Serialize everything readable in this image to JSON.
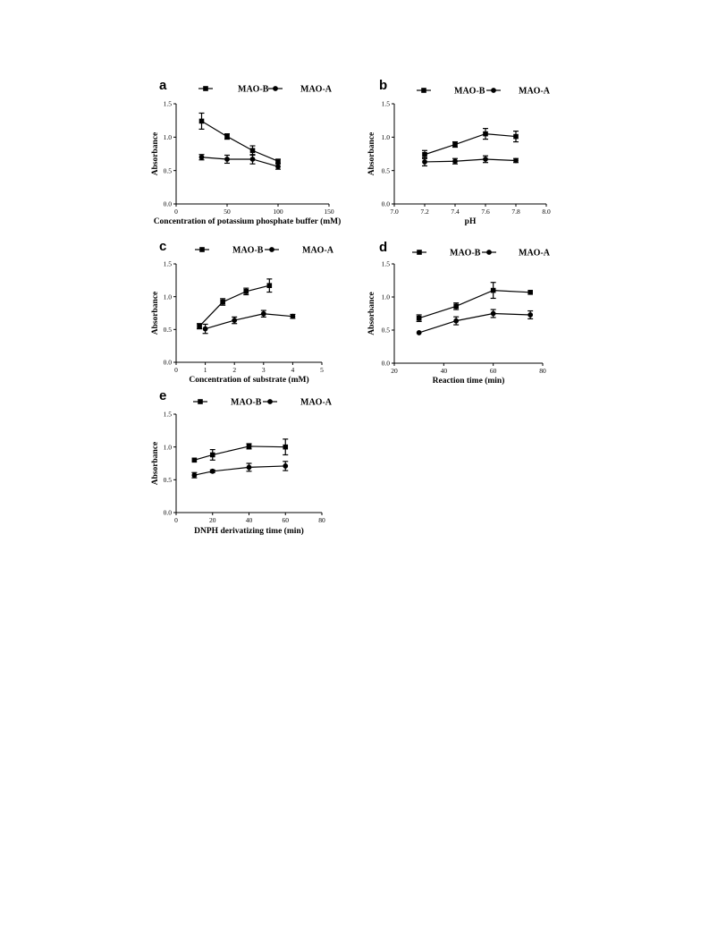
{
  "chart_data": [
    {
      "panel": "a",
      "type": "line",
      "xlabel": "Concentration of potassium phosphate buffer (mM)",
      "ylabel": "Absorbance",
      "xlim": [
        0,
        150
      ],
      "ylim": [
        0,
        1.5
      ],
      "xticks": [
        0,
        50,
        100,
        150
      ],
      "yticks": [
        0.0,
        0.5,
        1.0,
        1.5
      ],
      "xtick_labels": [
        "0",
        "50",
        "100",
        "150"
      ],
      "ytick_labels": [
        "0.0",
        "0.5",
        "1.0",
        "1.5"
      ],
      "legend": "top",
      "series": [
        {
          "name": "MAO-B",
          "marker": "square",
          "x": [
            25,
            50,
            75,
            100
          ],
          "y": [
            1.24,
            1.01,
            0.8,
            0.64
          ],
          "err": [
            0.12,
            0.04,
            0.07,
            0.03
          ]
        },
        {
          "name": "MAO-A",
          "marker": "circle",
          "x": [
            25,
            50,
            75,
            100
          ],
          "y": [
            0.7,
            0.67,
            0.67,
            0.56
          ],
          "err": [
            0.04,
            0.06,
            0.07,
            0.04
          ]
        }
      ]
    },
    {
      "panel": "b",
      "type": "line",
      "xlabel": "pH",
      "ylabel": "Absorbance",
      "xlim": [
        7.0,
        8.0
      ],
      "ylim": [
        0,
        1.5
      ],
      "xticks": [
        7.0,
        7.2,
        7.4,
        7.6,
        7.8,
        8.0
      ],
      "yticks": [
        0.0,
        0.5,
        1.0,
        1.5
      ],
      "xtick_labels": [
        "7.0",
        "7.2",
        "7.4",
        "7.6",
        "7.8",
        "8.0"
      ],
      "ytick_labels": [
        "0.0",
        "0.5",
        "1.0",
        "1.5"
      ],
      "legend": "top",
      "series": [
        {
          "name": "MAO-B",
          "marker": "square",
          "x": [
            7.2,
            7.4,
            7.6,
            7.8
          ],
          "y": [
            0.74,
            0.89,
            1.05,
            1.01
          ],
          "err": [
            0.06,
            0.04,
            0.08,
            0.08
          ]
        },
        {
          "name": "MAO-A",
          "marker": "circle",
          "x": [
            7.2,
            7.4,
            7.6,
            7.8
          ],
          "y": [
            0.63,
            0.64,
            0.67,
            0.65
          ],
          "err": [
            0.06,
            0.04,
            0.05,
            0.03
          ]
        }
      ]
    },
    {
      "panel": "c",
      "type": "line",
      "xlabel": "Concentration of substrate (mM)",
      "ylabel": "Absorbance",
      "xlim": [
        0,
        5
      ],
      "ylim": [
        0,
        1.5
      ],
      "xticks": [
        0,
        1,
        2,
        3,
        4,
        5
      ],
      "yticks": [
        0.0,
        0.5,
        1.0,
        1.5
      ],
      "xtick_labels": [
        "0",
        "1",
        "2",
        "3",
        "4",
        "5"
      ],
      "ytick_labels": [
        "0.0",
        "0.5",
        "1.0",
        "1.5"
      ],
      "legend": "top",
      "series": [
        {
          "name": "MAO-B",
          "marker": "square",
          "x": [
            0.8,
            1.6,
            2.4,
            3.2
          ],
          "y": [
            0.55,
            0.92,
            1.08,
            1.17
          ],
          "err": [
            0.04,
            0.05,
            0.05,
            0.1
          ]
        },
        {
          "name": "MAO-A",
          "marker": "circle",
          "x": [
            1.0,
            2.0,
            3.0,
            4.0
          ],
          "y": [
            0.51,
            0.64,
            0.74,
            0.7
          ],
          "err": [
            0.07,
            0.05,
            0.05,
            0.03
          ]
        }
      ]
    },
    {
      "panel": "d",
      "type": "line",
      "xlabel": "Reaction time (min)",
      "ylabel": "Absorbance",
      "xlim": [
        20,
        80
      ],
      "ylim": [
        0,
        1.5
      ],
      "xticks": [
        20,
        40,
        60,
        80
      ],
      "yticks": [
        0.0,
        0.5,
        1.0,
        1.5
      ],
      "xtick_labels": [
        "20",
        "40",
        "60",
        "80"
      ],
      "ytick_labels": [
        "0.0",
        "0.5",
        "1.0",
        "1.5"
      ],
      "legend": "top",
      "series": [
        {
          "name": "MAO-B",
          "marker": "square",
          "x": [
            30,
            45,
            60,
            75
          ],
          "y": [
            0.68,
            0.86,
            1.1,
            1.07
          ],
          "err": [
            0.05,
            0.05,
            0.12,
            0.0
          ]
        },
        {
          "name": "MAO-A",
          "marker": "circle",
          "x": [
            30,
            45,
            60,
            75
          ],
          "y": [
            0.46,
            0.64,
            0.75,
            0.73
          ],
          "err": [
            0.0,
            0.06,
            0.06,
            0.06
          ]
        }
      ]
    },
    {
      "panel": "e",
      "type": "line",
      "xlabel": "DNPH derivatizing time (min)",
      "ylabel": "Absorbance",
      "xlim": [
        0,
        80
      ],
      "ylim": [
        0,
        1.5
      ],
      "xticks": [
        0,
        20,
        40,
        60,
        80
      ],
      "yticks": [
        0.0,
        0.5,
        1.0,
        1.5
      ],
      "xtick_labels": [
        "0",
        "20",
        "40",
        "60",
        "80"
      ],
      "ytick_labels": [
        "0.0",
        "0.5",
        "1.0",
        "1.5"
      ],
      "legend": "top",
      "series": [
        {
          "name": "MAO-B",
          "marker": "square",
          "x": [
            10,
            20,
            40,
            60
          ],
          "y": [
            0.8,
            0.88,
            1.01,
            1.0
          ],
          "err": [
            0.0,
            0.08,
            0.04,
            0.12
          ]
        },
        {
          "name": "MAO-A",
          "marker": "circle",
          "x": [
            10,
            20,
            40,
            60
          ],
          "y": [
            0.57,
            0.63,
            0.69,
            0.71
          ],
          "err": [
            0.04,
            0.02,
            0.06,
            0.07
          ]
        }
      ]
    }
  ]
}
